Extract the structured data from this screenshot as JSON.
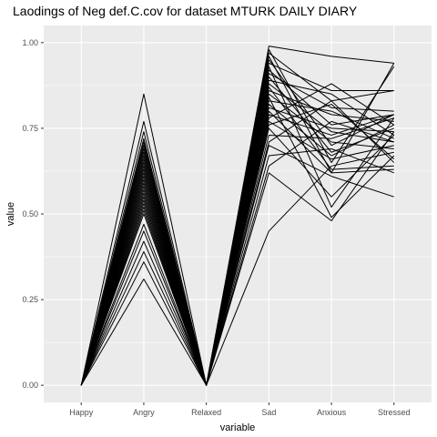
{
  "chart_data": {
    "type": "line",
    "title": "Laodings of Neg def.C.cov for dataset MTURK DAILY DIARY",
    "xlabel": "variable",
    "ylabel": "value",
    "categories": [
      "Happy",
      "Angry",
      "Relaxed",
      "Sad",
      "Anxious",
      "Stressed"
    ],
    "ylim": [
      0,
      1
    ],
    "yticks": [
      0.0,
      0.25,
      0.5,
      0.75,
      1.0
    ],
    "ytick_labels": [
      "0.00",
      "0.25",
      "0.50",
      "0.75",
      "1.00"
    ],
    "grid": true,
    "legend": "none",
    "colors": {
      "panel": "#ebebeb",
      "grid": "#ffffff",
      "line": "#000000"
    },
    "series": [
      {
        "values": [
          0,
          0.85,
          0,
          0.99,
          0.96,
          0.94
        ]
      },
      {
        "values": [
          0,
          0.77,
          0,
          0.98,
          0.65,
          0.93
        ]
      },
      {
        "values": [
          0,
          0.74,
          0,
          0.97,
          0.83,
          0.86
        ]
      },
      {
        "values": [
          0,
          0.72,
          0,
          0.96,
          0.62,
          0.94
        ]
      },
      {
        "values": [
          0,
          0.71,
          0,
          0.95,
          0.7,
          0.79
        ]
      },
      {
        "values": [
          0,
          0.7,
          0,
          0.94,
          0.86,
          0.86
        ]
      },
      {
        "values": [
          0,
          0.69,
          0,
          0.93,
          0.52,
          0.78
        ]
      },
      {
        "values": [
          0,
          0.68,
          0,
          0.92,
          0.76,
          0.79
        ]
      },
      {
        "values": [
          0,
          0.67,
          0,
          0.91,
          0.81,
          0.8
        ]
      },
      {
        "values": [
          0,
          0.66,
          0,
          0.9,
          0.68,
          0.75
        ]
      },
      {
        "values": [
          0,
          0.65,
          0,
          0.89,
          0.85,
          0.73
        ]
      },
      {
        "values": [
          0,
          0.64,
          0,
          0.88,
          0.74,
          0.71
        ]
      },
      {
        "values": [
          0,
          0.63,
          0,
          0.87,
          0.63,
          0.64
        ]
      },
      {
        "values": [
          0,
          0.62,
          0,
          0.86,
          0.79,
          0.77
        ]
      },
      {
        "values": [
          0,
          0.61,
          0,
          0.85,
          0.71,
          0.69
        ]
      },
      {
        "values": [
          0,
          0.6,
          0,
          0.84,
          0.49,
          0.67
        ]
      },
      {
        "values": [
          0,
          0.59,
          0,
          0.83,
          0.8,
          0.72
        ]
      },
      {
        "values": [
          0,
          0.58,
          0,
          0.82,
          0.67,
          0.76
        ]
      },
      {
        "values": [
          0,
          0.57,
          0,
          0.81,
          0.75,
          0.74
        ]
      },
      {
        "values": [
          0,
          0.56,
          0,
          0.8,
          0.62,
          0.63
        ]
      },
      {
        "values": [
          0,
          0.55,
          0,
          0.79,
          0.73,
          0.79
        ]
      },
      {
        "values": [
          0,
          0.54,
          0,
          0.78,
          0.88,
          0.76
        ]
      },
      {
        "values": [
          0,
          0.53,
          0,
          0.77,
          0.66,
          0.7
        ]
      },
      {
        "values": [
          0,
          0.52,
          0,
          0.76,
          0.82,
          0.66
        ]
      },
      {
        "values": [
          0,
          0.51,
          0,
          0.75,
          0.55,
          0.73
        ]
      },
      {
        "values": [
          0,
          0.5,
          0,
          0.73,
          0.72,
          0.78
        ]
      },
      {
        "values": [
          0,
          0.47,
          0,
          0.71,
          0.83,
          0.65
        ]
      },
      {
        "values": [
          0,
          0.45,
          0,
          0.7,
          0.61,
          0.55
        ]
      },
      {
        "values": [
          0,
          0.42,
          0,
          0.67,
          0.69,
          0.62
        ]
      },
      {
        "values": [
          0,
          0.39,
          0,
          0.64,
          0.77,
          0.71
        ]
      },
      {
        "values": [
          0,
          0.36,
          0,
          0.62,
          0.48,
          0.74
        ]
      },
      {
        "values": [
          0,
          0.31,
          0,
          0.45,
          0.64,
          0.68
        ]
      }
    ]
  }
}
